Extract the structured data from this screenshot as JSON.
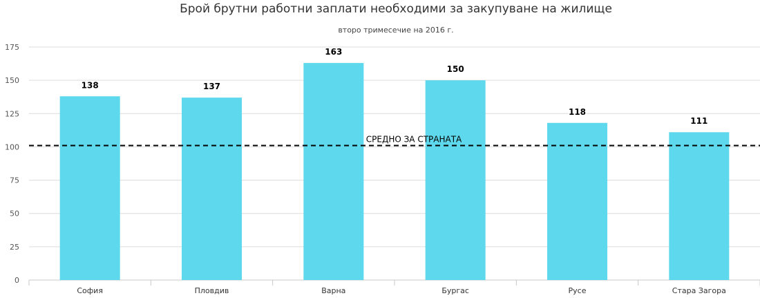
{
  "chart_data": {
    "type": "bar",
    "title": "Брой брутни работни заплати необходими за закупуване на жилище",
    "subtitle": "второ тримесечие на 2016 г.",
    "categories": [
      "София",
      "Пловдив",
      "Варна",
      "Бургас",
      "Русе",
      "Стара Загора"
    ],
    "values": [
      138,
      137,
      163,
      150,
      118,
      111
    ],
    "data_labels": [
      "138",
      "137",
      "163",
      "150",
      "118",
      "111"
    ],
    "ylim": [
      0,
      175
    ],
    "yticks": [
      "0",
      "25",
      "50",
      "75",
      "100",
      "125",
      "150",
      "175"
    ],
    "grid": true,
    "bar_color": "#5dd8ec",
    "reference_line": {
      "value": 101,
      "label": "СРЕДНО ЗА СТРАНАТА",
      "style": "dashed",
      "color": "#000000"
    }
  }
}
